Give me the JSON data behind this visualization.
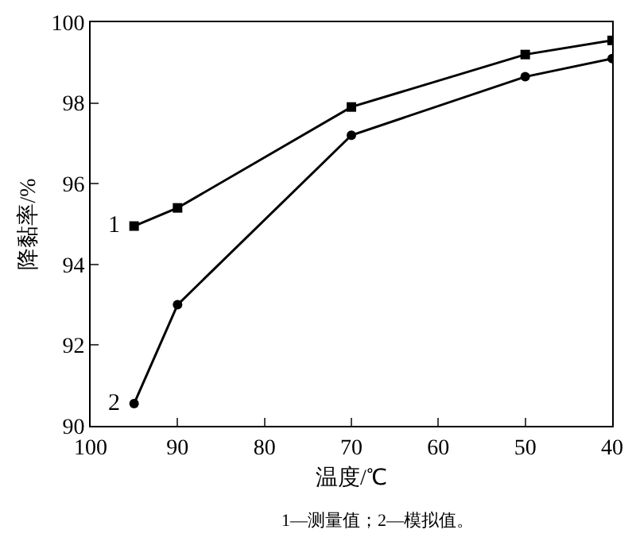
{
  "chart_data": {
    "type": "line",
    "xlabel": "温度/℃",
    "ylabel": "降黏率/%",
    "x": [
      95,
      90,
      70,
      50,
      40
    ],
    "series": [
      {
        "name": "1",
        "color": "#000000",
        "marker": "square",
        "values": [
          94.95,
          95.4,
          97.9,
          99.2,
          99.55
        ]
      },
      {
        "name": "2",
        "color": "#000000",
        "marker": "circle",
        "values": [
          90.55,
          93.0,
          97.2,
          98.65,
          99.1
        ]
      }
    ],
    "xlim": [
      100,
      40
    ],
    "xticks": [
      100,
      90,
      80,
      70,
      60,
      50,
      40
    ],
    "ylim": [
      90,
      100
    ],
    "yticks": [
      90,
      92,
      94,
      96,
      98,
      100
    ],
    "grid": false,
    "legend": false,
    "line_style": "solid",
    "annotations": [
      "1—测量值；2—模拟值。"
    ]
  }
}
